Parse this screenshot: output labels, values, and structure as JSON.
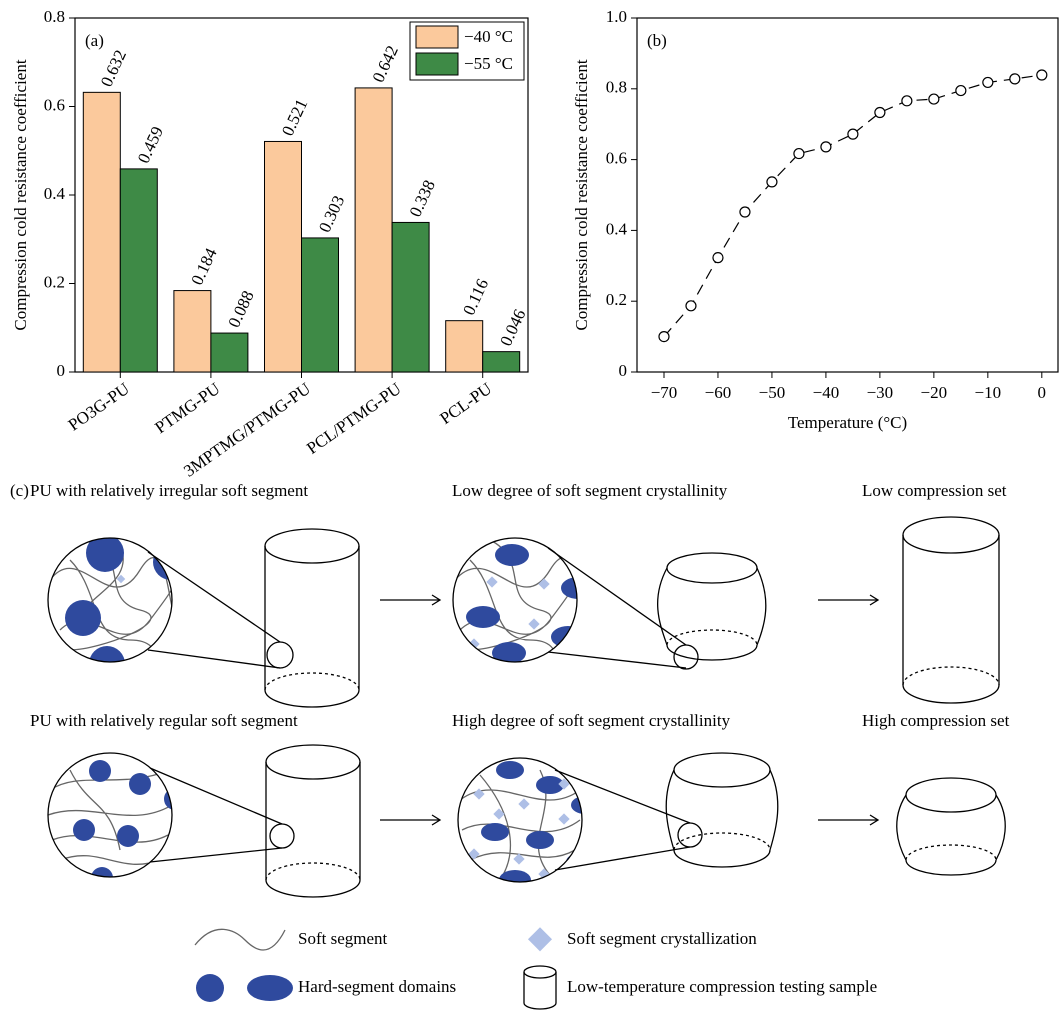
{
  "chart_data": [
    {
      "type": "bar",
      "panel_label": "(a)",
      "y_label": "Compression cold resistance coefficient",
      "categories": [
        "PO3G-PU",
        "PTMG-PU",
        "3MPTMG/PTMG-PU",
        "PCL/PTMG-PU",
        "PCL-PU"
      ],
      "series": [
        {
          "name": "−40 °C",
          "color": "#fbc99c",
          "values": [
            0.632,
            0.184,
            0.521,
            0.642,
            0.116
          ]
        },
        {
          "name": "−55 °C",
          "color": "#3e8a46",
          "values": [
            0.459,
            0.088,
            0.303,
            0.338,
            0.046
          ]
        }
      ],
      "ylim": [
        0,
        0.8
      ],
      "yticks": [
        0,
        0.2,
        0.4,
        0.6,
        0.8
      ],
      "legend": "upper right"
    },
    {
      "type": "line",
      "panel_label": "(b)",
      "x_label": "Temperature (°C)",
      "y_label": "Compression cold resistance coefficient",
      "x": [
        -70,
        -65,
        -60,
        -55,
        -50,
        -45,
        -40,
        -35,
        -30,
        -25,
        -20,
        -15,
        -10,
        -5,
        0
      ],
      "values": [
        0.1,
        0.187,
        0.323,
        0.452,
        0.537,
        0.617,
        0.636,
        0.672,
        0.733,
        0.766,
        0.771,
        0.795,
        0.818,
        0.828,
        0.839
      ],
      "color": "#000000",
      "line_style": "dashed",
      "marker": "open-circle",
      "xlim": [
        -75,
        3
      ],
      "xticks": [
        {
          "value": -70,
          "label": "−70"
        },
        {
          "value": -60,
          "label": "−60"
        },
        {
          "value": -50,
          "label": "−50"
        },
        {
          "value": -40,
          "label": "−40"
        },
        {
          "value": -30,
          "label": "−30"
        },
        {
          "value": -20,
          "label": "−20"
        },
        {
          "value": -10,
          "label": "−10"
        },
        0
      ],
      "ylim": [
        0,
        1
      ],
      "yticks": [
        0,
        0.2,
        0.4,
        0.6,
        0.8,
        {
          "value": 1,
          "label": "1.0"
        }
      ]
    }
  ],
  "diagram": {
    "panel_label": "(c)",
    "rows": [
      {
        "labels": [
          "PU with relatively irregular soft segment",
          "Low degree of soft segment crystallinity",
          "Low compression set"
        ]
      },
      {
        "labels": [
          "PU with relatively regular soft segment",
          "High degree of soft segment crystallinity",
          "High compression set"
        ]
      }
    ],
    "legend": [
      "Soft segment",
      "Soft segment crystallization",
      "Hard-segment domains",
      "Low-temperature compression testing sample"
    ]
  }
}
